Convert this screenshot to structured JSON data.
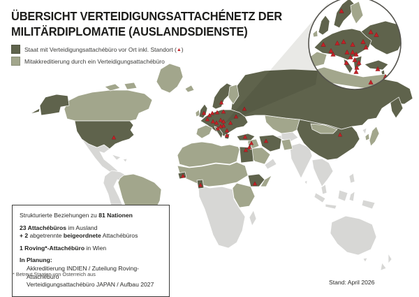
{
  "title": {
    "line1": "ÜBERSICHT VERTEIDIGUNGSATTACHÉNETZ DER",
    "line2": "MILITÄRDIPLOMATIE (AUSLANDSDIENSTE)"
  },
  "legend": {
    "attache_office": {
      "label_pre": "Staat mit Verteidigungsattachébüro vor Ort inkl. Standort (",
      "marker_glyph": "▲",
      "label_post": ")",
      "color": "#5f634c"
    },
    "co_accreditation": {
      "label": "Mitakkreditierung durch ein Verteidigungsattachébüro",
      "color": "#a2a68c"
    }
  },
  "infobox": {
    "line1_pre": "Strukturierte Beziehungen zu ",
    "line1_bold": "81 Nationen",
    "line2_bold": "23 Attachébüros",
    "line2_post": " im Ausland",
    "line3_bold1": "+ 2",
    "line3_mid": " abgetrennte ",
    "line3_bold2": "beigeordnete",
    "line3_post": " Attachébüros",
    "line4_bold": "1 Roving*-Attachébüro",
    "line4_post": " in Wien",
    "planning_label": "In Planung:",
    "planning_line1": "Akkreditierung INDIEN / Zuteilung Roving-Attachébüro",
    "planning_line2": "Verteidigungsattachébüro JAPAN / Aufbau 2027"
  },
  "footnote": "*  Betreut Staaten von Österreich aus",
  "status": "Stand: April 2026",
  "colors": {
    "office_state": "#5f634c",
    "co_accredited": "#a2a68c",
    "no_relation": "#d7d7d5",
    "marker": "#c42127",
    "ocean": "#ffffff"
  },
  "map_markers": {
    "main": [
      [
        163,
        197
      ],
      [
        262,
        252
      ],
      [
        287,
        265
      ],
      [
        352,
        215
      ],
      [
        365,
        263
      ],
      [
        357,
        211
      ],
      [
        360,
        205
      ],
      [
        351,
        196
      ],
      [
        381,
        202
      ],
      [
        487,
        193
      ],
      [
        350,
        156
      ],
      [
        317,
        147
      ],
      [
        292,
        162
      ],
      [
        297,
        171
      ],
      [
        300,
        165
      ],
      [
        304,
        162
      ],
      [
        311,
        161
      ],
      [
        320,
        160
      ],
      [
        338,
        167
      ],
      [
        316,
        172
      ],
      [
        320,
        174
      ],
      [
        312,
        184
      ],
      [
        320,
        180
      ],
      [
        316,
        181
      ],
      [
        325,
        194
      ],
      [
        305,
        174
      ],
      [
        325,
        187
      ],
      [
        310,
        176
      ],
      [
        330,
        176
      ]
    ],
    "inset": [
      [
        489,
        16
      ],
      [
        531,
        46
      ],
      [
        539,
        50
      ],
      [
        463,
        64
      ],
      [
        474,
        73
      ],
      [
        483,
        62
      ],
      [
        492,
        60
      ],
      [
        505,
        64
      ],
      [
        524,
        68
      ],
      [
        497,
        75
      ],
      [
        505,
        75
      ],
      [
        510,
        78
      ],
      [
        502,
        82
      ],
      [
        508,
        86
      ],
      [
        496,
        90
      ],
      [
        477,
        78
      ],
      [
        514,
        90
      ],
      [
        511,
        97
      ],
      [
        510,
        103
      ],
      [
        520,
        60
      ],
      [
        541,
        99
      ],
      [
        552,
        110
      ],
      [
        549,
        122
      ],
      [
        531,
        118
      ]
    ]
  }
}
